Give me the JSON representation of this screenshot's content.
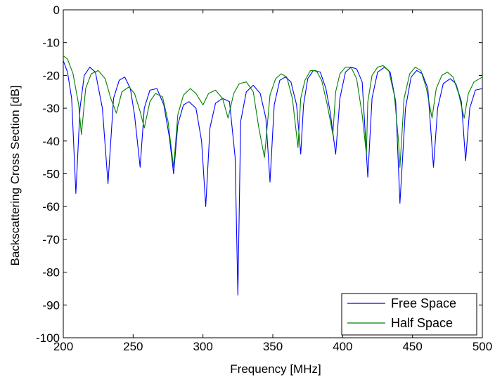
{
  "chart_data": {
    "type": "line",
    "xlabel": "Frequency  [MHz]",
    "ylabel": "Backscattering Cross Section  [dB]",
    "xlim": [
      200,
      500
    ],
    "ylim": [
      -100,
      0
    ],
    "xticks": [
      200,
      250,
      300,
      350,
      400,
      450,
      500
    ],
    "yticks": [
      0,
      -10,
      -20,
      -30,
      -40,
      -50,
      -60,
      -70,
      -80,
      -90,
      -100
    ],
    "legend": "bottom-right",
    "grid": false,
    "series": [
      {
        "name": "Free Space",
        "color": "#0000ff",
        "x": [
          200,
          203,
          206,
          209,
          212,
          215,
          219,
          223,
          228,
          232,
          236,
          240,
          244,
          248,
          251,
          255,
          258,
          262,
          267,
          272,
          276,
          279,
          282,
          286,
          290,
          295,
          299,
          302,
          305,
          309,
          314,
          319,
          323,
          325,
          327,
          331,
          336,
          341,
          345,
          348,
          351,
          355,
          359,
          363,
          367,
          370,
          372,
          375,
          379,
          384,
          388,
          391,
          395,
          398,
          402,
          406,
          410,
          414,
          418,
          421,
          425,
          430,
          434,
          438,
          441,
          445,
          449,
          453,
          457,
          461,
          465,
          468,
          472,
          477,
          481,
          485,
          488,
          491,
          495,
          500
        ],
        "y": [
          -15.5,
          -19,
          -27,
          -56,
          -30,
          -20,
          -17.5,
          -19,
          -30,
          -53,
          -27,
          -21.5,
          -20.5,
          -24,
          -32,
          -48,
          -30,
          -24.5,
          -24,
          -29,
          -39,
          -50,
          -35,
          -29,
          -28,
          -30,
          -40,
          -60,
          -36,
          -28.5,
          -27,
          -28,
          -45,
          -87,
          -34,
          -25,
          -23,
          -25.5,
          -33,
          -52.5,
          -29,
          -21.5,
          -20.5,
          -22,
          -29,
          -44,
          -29,
          -21,
          -18.5,
          -19,
          -24,
          -31,
          -44,
          -27,
          -19,
          -17.5,
          -18,
          -22,
          -51,
          -27,
          -19,
          -17.5,
          -19,
          -28,
          -59,
          -30,
          -20.5,
          -18.5,
          -19.5,
          -24,
          -48,
          -30,
          -22.5,
          -21,
          -22.5,
          -28,
          -46,
          -30,
          -24.5,
          -24
        ]
      },
      {
        "name": "Half Space",
        "color": "#008000",
        "x": [
          200,
          203,
          207,
          211,
          213,
          216,
          220,
          225,
          230,
          234,
          238,
          242,
          247,
          251,
          255,
          258,
          262,
          266,
          271,
          275,
          279,
          282,
          286,
          291,
          295,
          300,
          304,
          309,
          314,
          318,
          322,
          326,
          331,
          336,
          340,
          344,
          348,
          352,
          356,
          360,
          364,
          368,
          370,
          373,
          377,
          381,
          385,
          389,
          393,
          395,
          398,
          402,
          406,
          410,
          414,
          417,
          418,
          421,
          425,
          429,
          433,
          437,
          440,
          441,
          444,
          448,
          452,
          456,
          460,
          464,
          467,
          471,
          475,
          479,
          483,
          487,
          490,
          494,
          500
        ],
        "y": [
          -14,
          -15,
          -19.5,
          -29,
          -38,
          -24,
          -19.5,
          -18.5,
          -21,
          -27,
          -31.5,
          -25,
          -23.5,
          -25.5,
          -31,
          -36,
          -28,
          -25.5,
          -26.5,
          -34,
          -48,
          -32,
          -26,
          -24,
          -25.5,
          -29,
          -25.5,
          -24.5,
          -27,
          -33,
          -25.5,
          -22.5,
          -22,
          -25,
          -36,
          -45,
          -26,
          -21,
          -19.5,
          -20.5,
          -27,
          -42,
          -27,
          -21.5,
          -18.5,
          -18.5,
          -21.5,
          -29,
          -38,
          -25,
          -19.5,
          -17.5,
          -17.5,
          -21,
          -32,
          -44,
          -28,
          -20,
          -17.5,
          -17,
          -18.5,
          -26,
          -40,
          -48,
          -27,
          -19.5,
          -17.5,
          -18.5,
          -24,
          -33,
          -24,
          -20,
          -19,
          -20.5,
          -25.5,
          -33,
          -25.5,
          -22,
          -20.5
        ]
      }
    ]
  }
}
